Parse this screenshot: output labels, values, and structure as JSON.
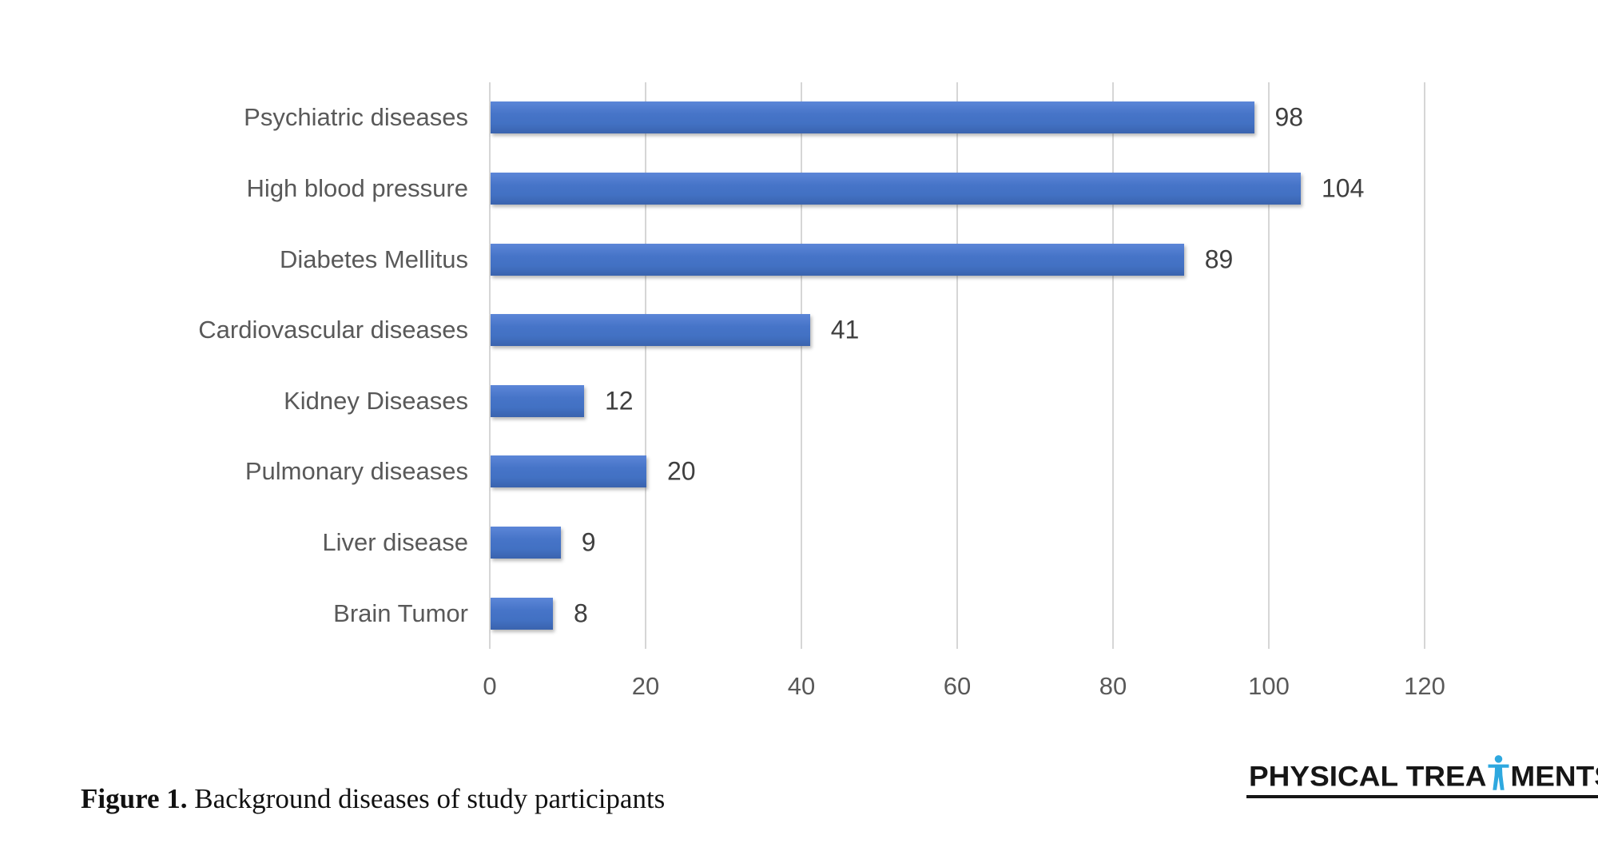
{
  "chart_data": {
    "type": "bar",
    "orientation": "horizontal",
    "title": "",
    "xlabel": "",
    "ylabel": "",
    "categories": [
      "Psychiatric diseases",
      "High blood pressure",
      "Diabetes Mellitus",
      "Cardiovascular diseases",
      "Kidney Diseases",
      "Pulmonary diseases",
      "Liver disease",
      "Brain Tumor"
    ],
    "values": [
      98,
      104,
      89,
      41,
      12,
      20,
      9,
      8
    ],
    "xlim": [
      0,
      120
    ],
    "x_ticks": [
      0,
      20,
      40,
      60,
      80,
      100,
      120
    ],
    "grid": true,
    "legend": "none",
    "bar_color": "#4472C4",
    "gridline_color": "#D6D6D6",
    "category_label_color": "#595959",
    "tick_label_color": "#595959",
    "value_label_color": "#3F3F3F"
  },
  "caption": {
    "label": "Figure 1.",
    "text": " Background diseases of study participants"
  },
  "logo": {
    "text_before": "PHYSICAL TREA",
    "text_after": "MENTS",
    "icon": "human-figure-icon",
    "icon_color": "#2EA8DF",
    "text_color": "#161616"
  }
}
